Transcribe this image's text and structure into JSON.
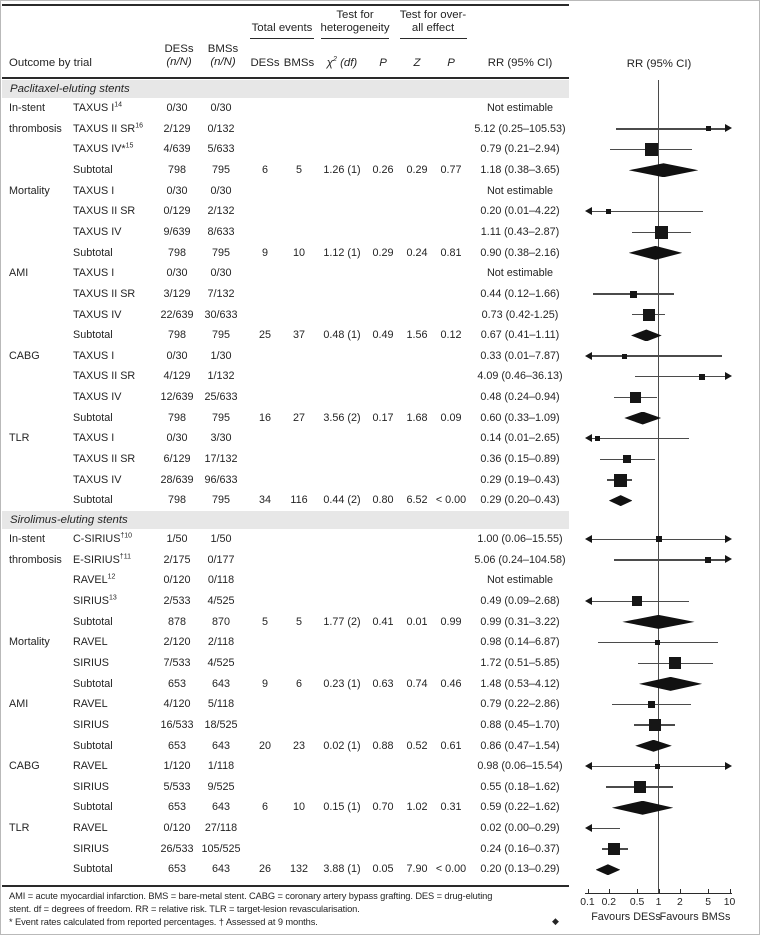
{
  "header": {
    "outcome_col": "Outcome by trial",
    "des_col_1": "DESs",
    "des_col_2": "(n/N)",
    "bms_col_1": "BMSs",
    "bms_col_2": "(n/N)",
    "total_events": "Total events",
    "te_des": "DESs",
    "te_bms": "BMSs",
    "het_line1": "Test for",
    "het_line2": "heterogeneity",
    "overall_line1": "Test for over-",
    "overall_line2": "all effect",
    "chi_base": "χ",
    "chi_sup": "2",
    "chi_df": " (df)",
    "p_het": "P",
    "z": "Z",
    "p_overall": "P",
    "rr_col": "RR (95% CI)"
  },
  "chart_data": {
    "type": "table",
    "plot_title": "RR (95% CI)",
    "axis": {
      "scale": "log",
      "ticks": [
        "0.1",
        "0.2",
        "0.5",
        "1",
        "2",
        "5",
        "10"
      ],
      "favours_left": "Favours DESs",
      "favours_right": "Favours BMSs",
      "xlim": [
        0.1,
        10
      ]
    },
    "sections": [
      {
        "title": "Paclitaxel-eluting stents",
        "rows": [
          {
            "o": "In-stent",
            "t": "TAXUS I",
            "s": "14",
            "des": "0/30",
            "bms": "0/30",
            "rr": "Not estimable",
            "m": null
          },
          {
            "o": "thrombosis",
            "t": "TAXUS II SR",
            "s": "16",
            "des": "2/129",
            "bms": "0/132",
            "rr": "5.12 (0.25–105.53)",
            "m": {
              "k": "sq",
              "v": 5.12,
              "lo": 0.25,
              "hi": 105.53,
              "sz": 5,
              "ar": 1
            }
          },
          {
            "t": "TAXUS IV*",
            "s": "15",
            "des": "4/639",
            "bms": "5/633",
            "rr": "0.79 (0.21–2.94)",
            "m": {
              "k": "sq",
              "v": 0.79,
              "lo": 0.21,
              "hi": 2.94,
              "sz": 13
            }
          },
          {
            "t": "Subtotal",
            "des": "798",
            "bms": "795",
            "ted": "6",
            "teb": "5",
            "chi": "1.26 (1)",
            "ph": "0.26",
            "z": "0.29",
            "po": "0.77",
            "rr": "1.18 (0.38–3.65)",
            "m": {
              "k": "d",
              "lo": 0.38,
              "hi": 3.65,
              "sz": 14
            }
          },
          {
            "o": "Mortality",
            "t": "TAXUS I",
            "des": "0/30",
            "bms": "0/30",
            "rr": "Not estimable",
            "m": null
          },
          {
            "t": "TAXUS II SR",
            "des": "0/129",
            "bms": "2/132",
            "rr": "0.20 (0.01–4.22)",
            "m": {
              "k": "sq",
              "v": 0.2,
              "lo": 0.01,
              "hi": 4.22,
              "sz": 5,
              "al": 1
            }
          },
          {
            "t": "TAXUS IV",
            "des": "9/639",
            "bms": "8/633",
            "rr": "1.11 (0.43–2.87)",
            "m": {
              "k": "sq",
              "v": 1.11,
              "lo": 0.43,
              "hi": 2.87,
              "sz": 13
            }
          },
          {
            "t": "Subtotal",
            "des": "798",
            "bms": "795",
            "ted": "9",
            "teb": "10",
            "chi": "1.12 (1)",
            "ph": "0.29",
            "z": "0.24",
            "po": "0.81",
            "rr": "0.90 (0.38–2.16)",
            "m": {
              "k": "d",
              "lo": 0.38,
              "hi": 2.16,
              "sz": 14
            }
          },
          {
            "o": "AMI",
            "t": "TAXUS I",
            "des": "0/30",
            "bms": "0/30",
            "rr": "Not estimable",
            "m": null
          },
          {
            "t": "TAXUS II SR",
            "des": "3/129",
            "bms": "7/132",
            "rr": "0.44 (0.12–1.66)",
            "m": {
              "k": "sq",
              "v": 0.44,
              "lo": 0.12,
              "hi": 1.66,
              "sz": 7
            }
          },
          {
            "t": "TAXUS IV",
            "des": "22/639",
            "bms": "30/633",
            "rr": "0.73 (0.42-1.25)",
            "m": {
              "k": "sq",
              "v": 0.73,
              "lo": 0.42,
              "hi": 1.25,
              "sz": 12
            }
          },
          {
            "t": "Subtotal",
            "des": "798",
            "bms": "795",
            "ted": "25",
            "teb": "37",
            "chi": "0.48 (1)",
            "ph": "0.49",
            "z": "1.56",
            "po": "0.12",
            "rr": "0.67 (0.41–1.11)",
            "m": {
              "k": "d",
              "lo": 0.41,
              "hi": 1.11,
              "sz": 12
            }
          },
          {
            "o": "CABG",
            "t": "TAXUS I",
            "des": "0/30",
            "bms": "1/30",
            "rr": "0.33 (0.01–7.87)",
            "m": {
              "k": "sq",
              "v": 0.33,
              "lo": 0.01,
              "hi": 7.87,
              "sz": 5,
              "al": 1
            }
          },
          {
            "t": "TAXUS II SR",
            "des": "4/129",
            "bms": "1/132",
            "rr": "4.09 (0.46–36.13)",
            "m": {
              "k": "sq",
              "v": 4.09,
              "lo": 0.46,
              "hi": 36.13,
              "sz": 6,
              "ar": 1
            }
          },
          {
            "t": "TAXUS IV",
            "des": "12/639",
            "bms": "25/633",
            "rr": "0.48 (0.24–0.94)",
            "m": {
              "k": "sq",
              "v": 0.48,
              "lo": 0.24,
              "hi": 0.94,
              "sz": 11
            }
          },
          {
            "t": "Subtotal",
            "des": "798",
            "bms": "795",
            "ted": "16",
            "teb": "27",
            "chi": "3.56 (2)",
            "ph": "0.17",
            "z": "1.68",
            "po": "0.09",
            "rr": "0.60 (0.33–1.09)",
            "m": {
              "k": "d",
              "lo": 0.33,
              "hi": 1.09,
              "sz": 13
            }
          },
          {
            "o": "TLR",
            "t": "TAXUS I",
            "des": "0/30",
            "bms": "3/30",
            "rr": "0.14 (0.01–2.65)",
            "m": {
              "k": "sq",
              "v": 0.14,
              "lo": 0.01,
              "hi": 2.65,
              "sz": 5,
              "al": 1
            }
          },
          {
            "t": "TAXUS II SR",
            "des": "6/129",
            "bms": "17/132",
            "rr": "0.36 (0.15–0.89)",
            "m": {
              "k": "sq",
              "v": 0.36,
              "lo": 0.15,
              "hi": 0.89,
              "sz": 8
            }
          },
          {
            "t": "TAXUS IV",
            "des": "28/639",
            "bms": "96/633",
            "rr": "0.29 (0.19–0.43)",
            "m": {
              "k": "sq",
              "v": 0.29,
              "lo": 0.19,
              "hi": 0.43,
              "sz": 13
            }
          },
          {
            "t": "Subtotal",
            "des": "798",
            "bms": "795",
            "ted": "34",
            "teb": "116",
            "chi": "0.44 (2)",
            "ph": "0.80",
            "z": "6.52",
            "po": "< 0.00",
            "rr": "0.29 (0.20–0.43)",
            "m": {
              "k": "d",
              "lo": 0.2,
              "hi": 0.43,
              "sz": 11
            }
          }
        ]
      },
      {
        "title": "Sirolimus-eluting stents",
        "rows": [
          {
            "o": "In-stent",
            "t": "C-SIRIUS",
            "s": "†10",
            "des": "1/50",
            "bms": "1/50",
            "rr": "1.00 (0.06–15.55)",
            "m": {
              "k": "sq",
              "v": 1.0,
              "lo": 0.06,
              "hi": 15.55,
              "sz": 6,
              "al": 1,
              "ar": 1
            }
          },
          {
            "o": "thrombosis",
            "t": "E-SIRIUS",
            "s": "†11",
            "des": "2/175",
            "bms": "0/177",
            "rr": "5.06 (0.24–104.58)",
            "m": {
              "k": "sq",
              "v": 5.06,
              "lo": 0.24,
              "hi": 104.58,
              "sz": 6,
              "ar": 1
            }
          },
          {
            "t": "RAVEL",
            "s": "12",
            "des": "0/120",
            "bms": "0/118",
            "rr": "Not estimable",
            "m": null
          },
          {
            "t": "SIRIUS",
            "s": "13",
            "des": "2/533",
            "bms": "4/525",
            "rr": "0.49 (0.09–2.68)",
            "m": {
              "k": "sq",
              "v": 0.49,
              "lo": 0.09,
              "hi": 2.68,
              "sz": 10,
              "al": 1
            }
          },
          {
            "t": "Subtotal",
            "des": "878",
            "bms": "870",
            "ted": "5",
            "teb": "5",
            "chi": "1.77 (2)",
            "ph": "0.41",
            "z": "0.01",
            "po": "0.99",
            "rr": "0.99 (0.31–3.22)",
            "m": {
              "k": "d",
              "lo": 0.31,
              "hi": 3.22,
              "sz": 14
            }
          },
          {
            "o": "Mortality",
            "t": "RAVEL",
            "des": "2/120",
            "bms": "2/118",
            "rr": "0.98 (0.14–6.87)",
            "m": {
              "k": "sq",
              "v": 0.98,
              "lo": 0.14,
              "hi": 6.87,
              "sz": 5
            }
          },
          {
            "t": "SIRIUS",
            "des": "7/533",
            "bms": "4/525",
            "rr": "1.72 (0.51–5.85)",
            "m": {
              "k": "sq",
              "v": 1.72,
              "lo": 0.51,
              "hi": 5.85,
              "sz": 12
            }
          },
          {
            "t": "Subtotal",
            "des": "653",
            "bms": "643",
            "ted": "9",
            "teb": "6",
            "chi": "0.23 (1)",
            "ph": "0.63",
            "z": "0.74",
            "po": "0.46",
            "rr": "1.48 (0.53–4.12)",
            "m": {
              "k": "d",
              "lo": 0.53,
              "hi": 4.12,
              "sz": 14
            }
          },
          {
            "o": "AMI",
            "t": "RAVEL",
            "des": "4/120",
            "bms": "5/118",
            "rr": "0.79 (0.22–2.86)",
            "m": {
              "k": "sq",
              "v": 0.79,
              "lo": 0.22,
              "hi": 2.86,
              "sz": 7
            }
          },
          {
            "t": "SIRIUS",
            "des": "16/533",
            "bms": "18/525",
            "rr": "0.88 (0.45–1.70)",
            "m": {
              "k": "sq",
              "v": 0.88,
              "lo": 0.45,
              "hi": 1.7,
              "sz": 12
            }
          },
          {
            "t": "Subtotal",
            "des": "653",
            "bms": "643",
            "ted": "20",
            "teb": "23",
            "chi": "0.02 (1)",
            "ph": "0.88",
            "z": "0.52",
            "po": "0.61",
            "rr": "0.86 (0.47–1.54)",
            "m": {
              "k": "d",
              "lo": 0.47,
              "hi": 1.54,
              "sz": 12
            }
          },
          {
            "o": "CABG",
            "t": "RAVEL",
            "des": "1/120",
            "bms": "1/118",
            "rr": "0.98 (0.06–15.54)",
            "m": {
              "k": "sq",
              "v": 0.98,
              "lo": 0.06,
              "hi": 15.54,
              "sz": 5,
              "al": 1,
              "ar": 1
            }
          },
          {
            "t": "SIRIUS",
            "des": "5/533",
            "bms": "9/525",
            "rr": "0.55 (0.18–1.62)",
            "m": {
              "k": "sq",
              "v": 0.55,
              "lo": 0.18,
              "hi": 1.62,
              "sz": 12
            }
          },
          {
            "t": "Subtotal",
            "des": "653",
            "bms": "643",
            "ted": "6",
            "teb": "10",
            "chi": "0.15 (1)",
            "ph": "0.70",
            "z": "1.02",
            "po": "0.31",
            "rr": "0.59 (0.22–1.62)",
            "m": {
              "k": "d",
              "lo": 0.22,
              "hi": 1.62,
              "sz": 14
            }
          },
          {
            "o": "TLR",
            "t": "RAVEL",
            "des": "0/120",
            "bms": "27/118",
            "rr": "0.02 (0.00–0.29)",
            "m": {
              "k": "sq",
              "v": 0.02,
              "lo": 0,
              "hi": 0.29,
              "sz": 5,
              "al": 1,
              "hid": 1
            }
          },
          {
            "t": "SIRIUS",
            "des": "26/533",
            "bms": "105/525",
            "rr": "0.24 (0.16–0.37)",
            "m": {
              "k": "sq",
              "v": 0.24,
              "lo": 0.16,
              "hi": 0.37,
              "sz": 12
            }
          },
          {
            "t": "Subtotal",
            "des": "653",
            "bms": "643",
            "ted": "26",
            "teb": "132",
            "chi": "3.88 (1)",
            "ph": "0.05",
            "z": "7.90",
            "po": "< 0.00",
            "rr": "0.20 (0.13–0.29)",
            "m": {
              "k": "d",
              "lo": 0.13,
              "hi": 0.29,
              "sz": 11
            }
          }
        ]
      }
    ]
  },
  "footnotes": [
    "AMI = acute myocardial infarction. BMS = bare-metal stent. CABG = coronary artery bypass grafting. DES = drug-eluting",
    "stent. df = degrees of freedom. RR = relative risk. TLR = target-lesion revascularisation.",
    "* Event rates calculated from reported percentages. † Assessed at 9 months."
  ],
  "end_mark": "◆"
}
